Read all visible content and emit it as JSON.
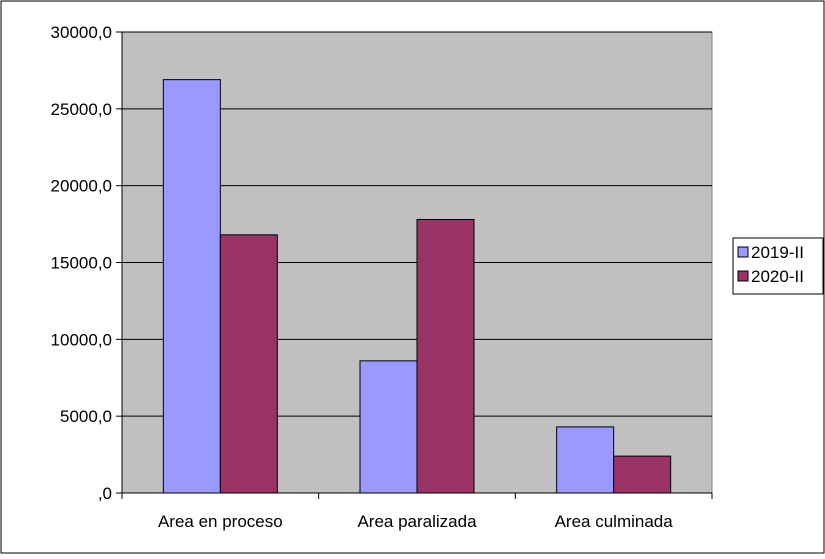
{
  "chart_data": {
    "type": "bar",
    "categories": [
      "Area en proceso",
      "Area paralizada",
      "Area culminada"
    ],
    "series": [
      {
        "name": "2019-II",
        "values": [
          26900,
          8600,
          4300
        ],
        "color": "#9999ff"
      },
      {
        "name": "2020-II",
        "values": [
          16800,
          17800,
          2400
        ],
        "color": "#993366"
      }
    ],
    "y_ticks": [
      "30000,0",
      "25000,0",
      "20000,0",
      "15000,0",
      "10000,0",
      "5000,0",
      ",0"
    ],
    "ylim": [
      0,
      30000
    ],
    "ytick_step": 5000,
    "grid": true,
    "legend_position": "right",
    "plot_background": "#c0c0c0"
  }
}
